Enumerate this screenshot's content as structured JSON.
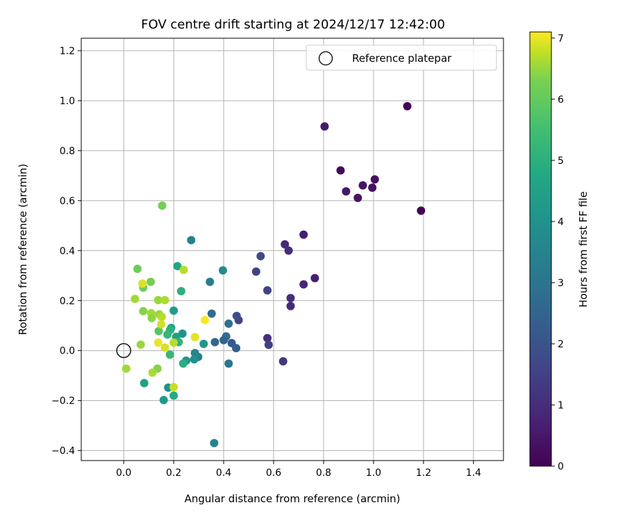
{
  "chart_data": {
    "type": "scatter",
    "title": "FOV centre drift starting at 2024/12/17 12:42:00",
    "xlabel": "Angular distance from reference (arcmin)",
    "ylabel": "Rotation from reference (arcmin)",
    "xlim": [
      -0.17,
      1.52
    ],
    "ylim": [
      -0.44,
      1.25
    ],
    "xticks": [
      "0.0",
      "0.2",
      "0.4",
      "0.6",
      "0.8",
      "1.0",
      "1.2",
      "1.4"
    ],
    "yticks": [
      "−0.4",
      "−0.2",
      "0.0",
      "0.2",
      "0.4",
      "0.6",
      "0.8",
      "1.0",
      "1.2"
    ],
    "grid": true,
    "legend": {
      "placement": "top-right",
      "entries": [
        {
          "label": "Reference platepar",
          "marker": "hollow circle"
        }
      ]
    },
    "reference_point": {
      "x": 0.0,
      "y": 0.0
    },
    "colorbar": {
      "label": "Hours from first FF file",
      "min": 0,
      "max": 7.1,
      "ticks": [
        "0",
        "1",
        "2",
        "3",
        "4",
        "5",
        "6",
        "7"
      ],
      "colormap": "viridis"
    },
    "points": [
      {
        "x": 1.135,
        "y": 0.978,
        "h": 0.05
      },
      {
        "x": 1.19,
        "y": 0.56,
        "h": 0.05
      },
      {
        "x": 1.005,
        "y": 0.685,
        "h": 0.3
      },
      {
        "x": 0.995,
        "y": 0.652,
        "h": 0.35
      },
      {
        "x": 0.957,
        "y": 0.661,
        "h": 0.4
      },
      {
        "x": 0.937,
        "y": 0.611,
        "h": 0.4
      },
      {
        "x": 0.89,
        "y": 0.637,
        "h": 0.45
      },
      {
        "x": 0.868,
        "y": 0.721,
        "h": 0.2
      },
      {
        "x": 0.804,
        "y": 0.897,
        "h": 0.5
      },
      {
        "x": 0.765,
        "y": 0.29,
        "h": 0.6
      },
      {
        "x": 0.72,
        "y": 0.464,
        "h": 0.6
      },
      {
        "x": 0.72,
        "y": 0.265,
        "h": 0.8
      },
      {
        "x": 0.645,
        "y": 0.425,
        "h": 0.8
      },
      {
        "x": 0.66,
        "y": 0.4,
        "h": 0.9
      },
      {
        "x": 0.668,
        "y": 0.21,
        "h": 0.9
      },
      {
        "x": 0.668,
        "y": 0.178,
        "h": 0.85
      },
      {
        "x": 0.638,
        "y": -0.043,
        "h": 1.1
      },
      {
        "x": 0.575,
        "y": 0.05,
        "h": 1.0
      },
      {
        "x": 0.58,
        "y": 0.023,
        "h": 1.3
      },
      {
        "x": 0.575,
        "y": 0.241,
        "h": 1.4
      },
      {
        "x": 0.548,
        "y": 0.378,
        "h": 1.6
      },
      {
        "x": 0.53,
        "y": 0.316,
        "h": 1.4
      },
      {
        "x": 0.46,
        "y": 0.122,
        "h": 1.4
      },
      {
        "x": 0.452,
        "y": 0.139,
        "h": 1.7
      },
      {
        "x": 0.432,
        "y": 0.03,
        "h": 2.0
      },
      {
        "x": 0.45,
        "y": 0.01,
        "h": 2.2
      },
      {
        "x": 0.41,
        "y": 0.057,
        "h": 2.5
      },
      {
        "x": 0.4,
        "y": 0.042,
        "h": 2.3
      },
      {
        "x": 0.42,
        "y": 0.108,
        "h": 2.6
      },
      {
        "x": 0.42,
        "y": -0.052,
        "h": 2.8
      },
      {
        "x": 0.365,
        "y": 0.034,
        "h": 2.4
      },
      {
        "x": 0.397,
        "y": 0.321,
        "h": 3.4
      },
      {
        "x": 0.352,
        "y": 0.148,
        "h": 2.5
      },
      {
        "x": 0.345,
        "y": 0.275,
        "h": 3.0
      },
      {
        "x": 0.362,
        "y": -0.37,
        "h": 3.2
      },
      {
        "x": 0.27,
        "y": 0.442,
        "h": 3.1
      },
      {
        "x": 0.32,
        "y": 0.027,
        "h": 3.8
      },
      {
        "x": 0.298,
        "y": -0.025,
        "h": 3.0
      },
      {
        "x": 0.285,
        "y": -0.01,
        "h": 3.2
      },
      {
        "x": 0.282,
        "y": -0.035,
        "h": 3.5
      },
      {
        "x": 0.25,
        "y": -0.04,
        "h": 3.7
      },
      {
        "x": 0.238,
        "y": -0.052,
        "h": 4.4
      },
      {
        "x": 0.235,
        "y": 0.068,
        "h": 3.6
      },
      {
        "x": 0.215,
        "y": 0.338,
        "h": 4.2
      },
      {
        "x": 0.23,
        "y": 0.238,
        "h": 4.5
      },
      {
        "x": 0.2,
        "y": 0.16,
        "h": 3.9
      },
      {
        "x": 0.21,
        "y": 0.055,
        "h": 4.0
      },
      {
        "x": 0.19,
        "y": 0.091,
        "h": 4.2
      },
      {
        "x": 0.185,
        "y": 0.082,
        "h": 4.5
      },
      {
        "x": 0.175,
        "y": 0.064,
        "h": 4.7
      },
      {
        "x": 0.22,
        "y": 0.034,
        "h": 4.6
      },
      {
        "x": 0.2,
        "y": -0.18,
        "h": 4.3
      },
      {
        "x": 0.178,
        "y": -0.148,
        "h": 3.6
      },
      {
        "x": 0.16,
        "y": -0.198,
        "h": 3.8
      },
      {
        "x": 0.185,
        "y": -0.016,
        "h": 4.7
      },
      {
        "x": 0.082,
        "y": -0.13,
        "h": 4.0
      },
      {
        "x": 0.14,
        "y": 0.078,
        "h": 5.2
      },
      {
        "x": 0.154,
        "y": 0.58,
        "h": 5.6
      },
      {
        "x": 0.055,
        "y": 0.327,
        "h": 5.5
      },
      {
        "x": 0.078,
        "y": 0.252,
        "h": 5.5
      },
      {
        "x": 0.108,
        "y": 0.275,
        "h": 5.6
      },
      {
        "x": 0.045,
        "y": 0.207,
        "h": 6.1
      },
      {
        "x": 0.078,
        "y": 0.158,
        "h": 5.8
      },
      {
        "x": 0.11,
        "y": 0.15,
        "h": 6.1
      },
      {
        "x": 0.112,
        "y": 0.13,
        "h": 5.9
      },
      {
        "x": 0.138,
        "y": 0.202,
        "h": 6.0
      },
      {
        "x": 0.165,
        "y": 0.202,
        "h": 6.2
      },
      {
        "x": 0.142,
        "y": 0.145,
        "h": 6.0
      },
      {
        "x": 0.152,
        "y": 0.135,
        "h": 6.3
      },
      {
        "x": 0.15,
        "y": 0.105,
        "h": 6.6
      },
      {
        "x": 0.068,
        "y": 0.024,
        "h": 6.0
      },
      {
        "x": 0.01,
        "y": -0.072,
        "h": 6.1
      },
      {
        "x": 0.135,
        "y": -0.072,
        "h": 5.8
      },
      {
        "x": 0.115,
        "y": -0.088,
        "h": 6.2
      },
      {
        "x": 0.2,
        "y": 0.032,
        "h": 6.3
      },
      {
        "x": 0.2,
        "y": -0.146,
        "h": 6.5
      },
      {
        "x": 0.165,
        "y": 0.012,
        "h": 6.7
      },
      {
        "x": 0.138,
        "y": 0.032,
        "h": 6.9
      },
      {
        "x": 0.075,
        "y": 0.268,
        "h": 6.7
      },
      {
        "x": 0.24,
        "y": 0.323,
        "h": 6.3
      },
      {
        "x": 0.285,
        "y": 0.054,
        "h": 6.8
      },
      {
        "x": 0.325,
        "y": 0.122,
        "h": 7.05
      }
    ]
  }
}
